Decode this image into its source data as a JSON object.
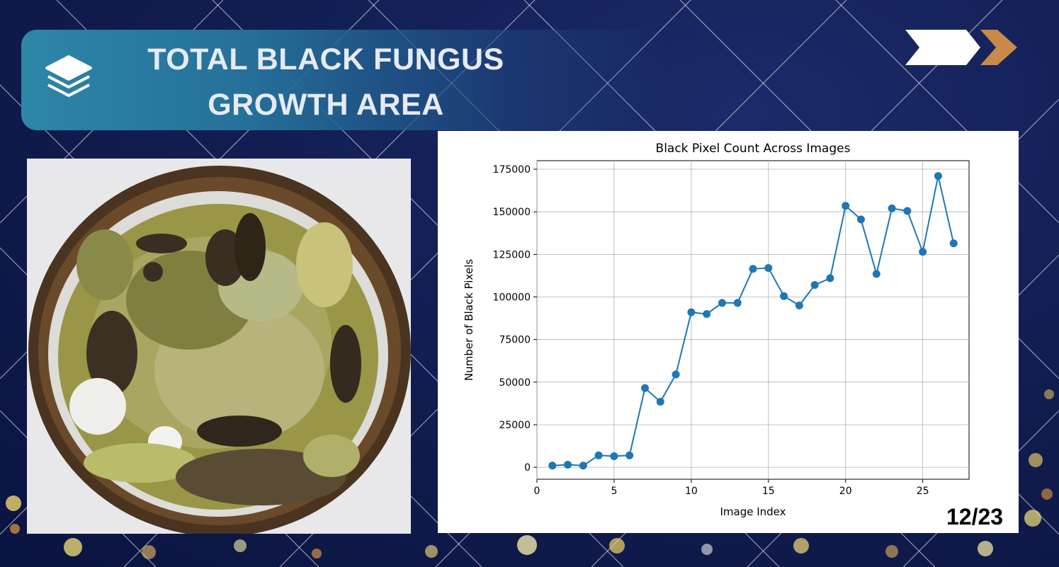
{
  "slide": {
    "title_line1": "TOTAL BLACK FUNGUS",
    "title_line2": "GROWTH AREA",
    "page_number": "12/23",
    "icons": [
      "layers-icon",
      "next-arrow-icon"
    ],
    "colors": {
      "banner": "#2d86a8",
      "background": "#121e52",
      "arrow_accent": "#c98a48",
      "series": "#1f77b4"
    }
  },
  "photo": {
    "description": "coconut shell with mould"
  },
  "chart_data": {
    "type": "line",
    "title": "Black Pixel Count Across Images",
    "xlabel": "Image Index",
    "ylabel": "Number of Black Pixels",
    "xlim": [
      0,
      28
    ],
    "ylim": [
      -7000,
      180000
    ],
    "xticks": [
      0,
      5,
      10,
      15,
      20,
      25
    ],
    "yticks": [
      0,
      25000,
      50000,
      75000,
      100000,
      125000,
      150000,
      175000
    ],
    "grid": true,
    "marker": "circle",
    "x": [
      1,
      2,
      3,
      4,
      5,
      6,
      7,
      8,
      9,
      10,
      11,
      12,
      13,
      14,
      15,
      16,
      17,
      18,
      19,
      20,
      21,
      22,
      23,
      24,
      25,
      26,
      27
    ],
    "values": [
      1000,
      1500,
      1000,
      7000,
      6500,
      7000,
      46500,
      38500,
      54500,
      91000,
      90000,
      96500,
      96500,
      116500,
      117000,
      100500,
      95000,
      107000,
      111000,
      153500,
      145500,
      113500,
      152000,
      150500,
      126500,
      171000,
      131500
    ]
  }
}
